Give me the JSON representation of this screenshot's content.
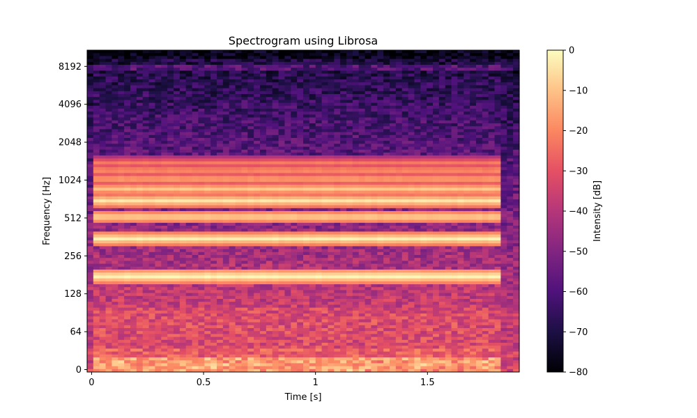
{
  "chart_data": {
    "type": "heatmap",
    "title": "Spectrogram using Librosa",
    "xlabel": "Time [s]",
    "ylabel": "Frequency [Hz]",
    "xlim": [
      -0.02,
      1.91
    ],
    "x_ticks": [
      {
        "value": 0,
        "label": "0"
      },
      {
        "value": 0.5,
        "label": "0.5"
      },
      {
        "value": 1,
        "label": "1"
      },
      {
        "value": 1.5,
        "label": "1.5"
      }
    ],
    "y_scale": "log",
    "y_ticks": [
      {
        "value": 0,
        "label": "0"
      },
      {
        "value": 64,
        "label": "64"
      },
      {
        "value": 128,
        "label": "128"
      },
      {
        "value": 256,
        "label": "256"
      },
      {
        "value": 512,
        "label": "512"
      },
      {
        "value": 1024,
        "label": "1024"
      },
      {
        "value": 2048,
        "label": "2048"
      },
      {
        "value": 4096,
        "label": "4096"
      },
      {
        "value": 8192,
        "label": "8192"
      }
    ],
    "sound_duration_s": 1.83,
    "harmonics_hz": [
      176,
      350,
      522,
      700,
      870,
      1045,
      1220,
      1395
    ],
    "harmonic_levels_db": [
      0,
      -2,
      -6,
      -4,
      -9,
      -14,
      -17,
      -21
    ],
    "colormap": "magma",
    "colorbar": {
      "label": "Intensity [dB]",
      "range": [
        -80,
        0
      ],
      "ticks": [
        {
          "value": 0,
          "label": "0"
        },
        {
          "value": -10,
          "label": "−10"
        },
        {
          "value": -20,
          "label": "−20"
        },
        {
          "value": -30,
          "label": "−30"
        },
        {
          "value": -40,
          "label": "−40"
        },
        {
          "value": -50,
          "label": "−50"
        },
        {
          "value": -60,
          "label": "−60"
        },
        {
          "value": -70,
          "label": "−70"
        },
        {
          "value": -80,
          "label": "−80"
        }
      ]
    },
    "grid": false,
    "legend": "none"
  }
}
